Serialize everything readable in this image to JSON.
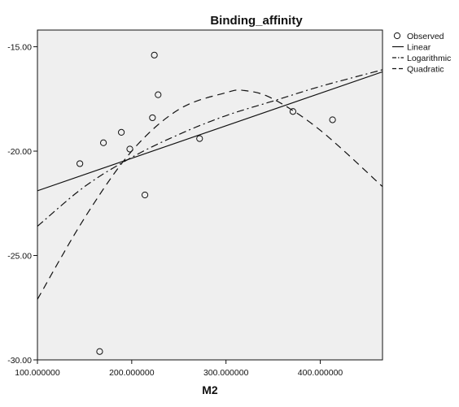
{
  "chart_data": {
    "type": "scatter",
    "title": "Binding_affinity",
    "xlabel": "M2",
    "ylabel": "",
    "xlim": [
      100,
      466
    ],
    "ylim": [
      -30,
      -14.2
    ],
    "x_ticks": [
      100,
      200,
      300,
      400
    ],
    "x_tick_labels": [
      "100.000000",
      "200.000000",
      "300.000000",
      "400.000000"
    ],
    "y_ticks": [
      -15,
      -20,
      -25,
      -30
    ],
    "y_tick_labels": [
      "-15.00",
      "-20.00",
      "-25.00",
      "-30.00"
    ],
    "grid": false,
    "legend_position": "top-right",
    "series": [
      {
        "name": "Observed",
        "kind": "points",
        "marker": "open-circle",
        "x": [
          145,
          166,
          170,
          189,
          198,
          214,
          222,
          224,
          228,
          272,
          371,
          413
        ],
        "y": [
          -20.6,
          -29.6,
          -19.6,
          -19.1,
          -19.9,
          -22.1,
          -18.4,
          -15.4,
          -17.3,
          -19.4,
          -18.1,
          -18.5
        ]
      },
      {
        "name": "Linear",
        "kind": "line",
        "dash": "solid",
        "x": [
          100,
          466
        ],
        "y": [
          -21.9,
          -16.2
        ]
      },
      {
        "name": "Logarithmic",
        "kind": "line",
        "dash": "dash-dot",
        "x": [
          100,
          150,
          200,
          250,
          300,
          350,
          400,
          466
        ],
        "y": [
          -23.6,
          -21.7,
          -20.3,
          -19.2,
          -18.3,
          -17.6,
          -16.9,
          -16.1
        ]
      },
      {
        "name": "Quadratic",
        "kind": "line",
        "dash": "dash",
        "x": [
          100,
          150,
          200,
          250,
          300,
          320,
          350,
          400,
          466
        ],
        "y": [
          -27.1,
          -23.2,
          -20.0,
          -18.0,
          -17.2,
          -17.1,
          -17.5,
          -19.0,
          -21.7
        ]
      }
    ]
  }
}
